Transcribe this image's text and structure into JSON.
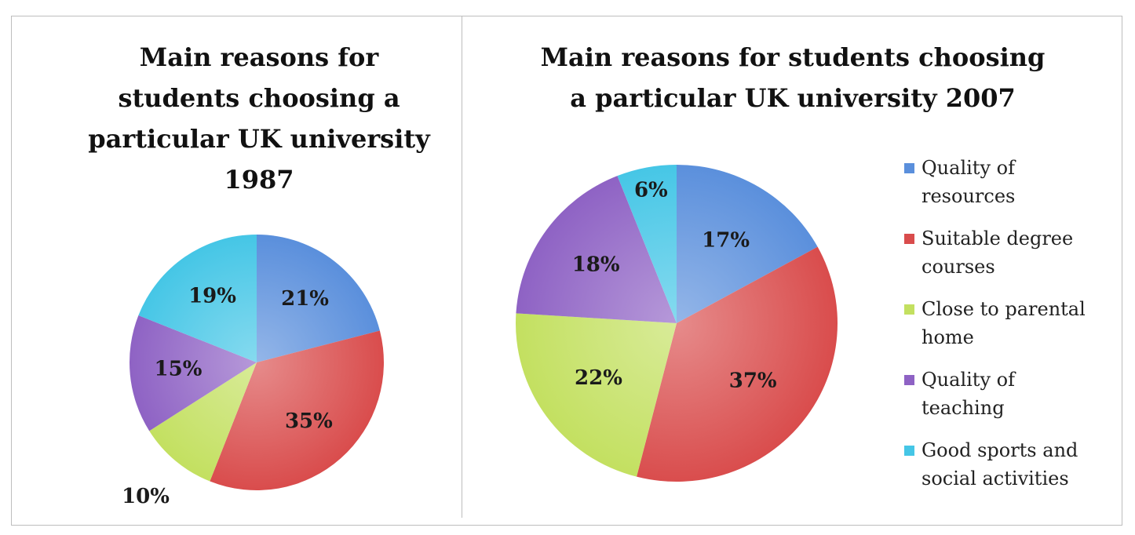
{
  "colors": {
    "quality_resources": "#5a8fdc",
    "suitable_degree": "#d94c4c",
    "close_parental": "#c3e060",
    "quality_teaching": "#8e62c4",
    "sports_social": "#45c6e6"
  },
  "chart_data": [
    {
      "type": "pie",
      "title_lines": [
        "Main reasons for",
        "students choosing  a",
        "particular UK university",
        "1987"
      ],
      "slices": [
        {
          "key": "quality_resources",
          "value": 21,
          "label": "21%"
        },
        {
          "key": "suitable_degree",
          "value": 35,
          "label": "35%"
        },
        {
          "key": "close_parental",
          "value": 10,
          "label": "10%"
        },
        {
          "key": "quality_teaching",
          "value": 15,
          "label": "15%"
        },
        {
          "key": "sports_social",
          "value": 19,
          "label": "19%"
        }
      ]
    },
    {
      "type": "pie",
      "title_lines": [
        "Main reasons for students choosing",
        "a particular UK university 2007"
      ],
      "slices": [
        {
          "key": "quality_resources",
          "value": 17,
          "label": "17%"
        },
        {
          "key": "suitable_degree",
          "value": 37,
          "label": "37%"
        },
        {
          "key": "close_parental",
          "value": 22,
          "label": "22%"
        },
        {
          "key": "quality_teaching",
          "value": 18,
          "label": "18%"
        },
        {
          "key": "sports_social",
          "value": 6,
          "label": "6%"
        }
      ],
      "legend": [
        {
          "key": "quality_resources",
          "lines": [
            "Quality of",
            "resources"
          ]
        },
        {
          "key": "suitable_degree",
          "lines": [
            "Suitable degree",
            "courses"
          ]
        },
        {
          "key": "close_parental",
          "lines": [
            "Close to parental",
            "home"
          ]
        },
        {
          "key": "quality_teaching",
          "lines": [
            "Quality of",
            "teaching"
          ]
        },
        {
          "key": "sports_social",
          "lines": [
            "Good sports and",
            "social activities"
          ]
        }
      ]
    }
  ]
}
